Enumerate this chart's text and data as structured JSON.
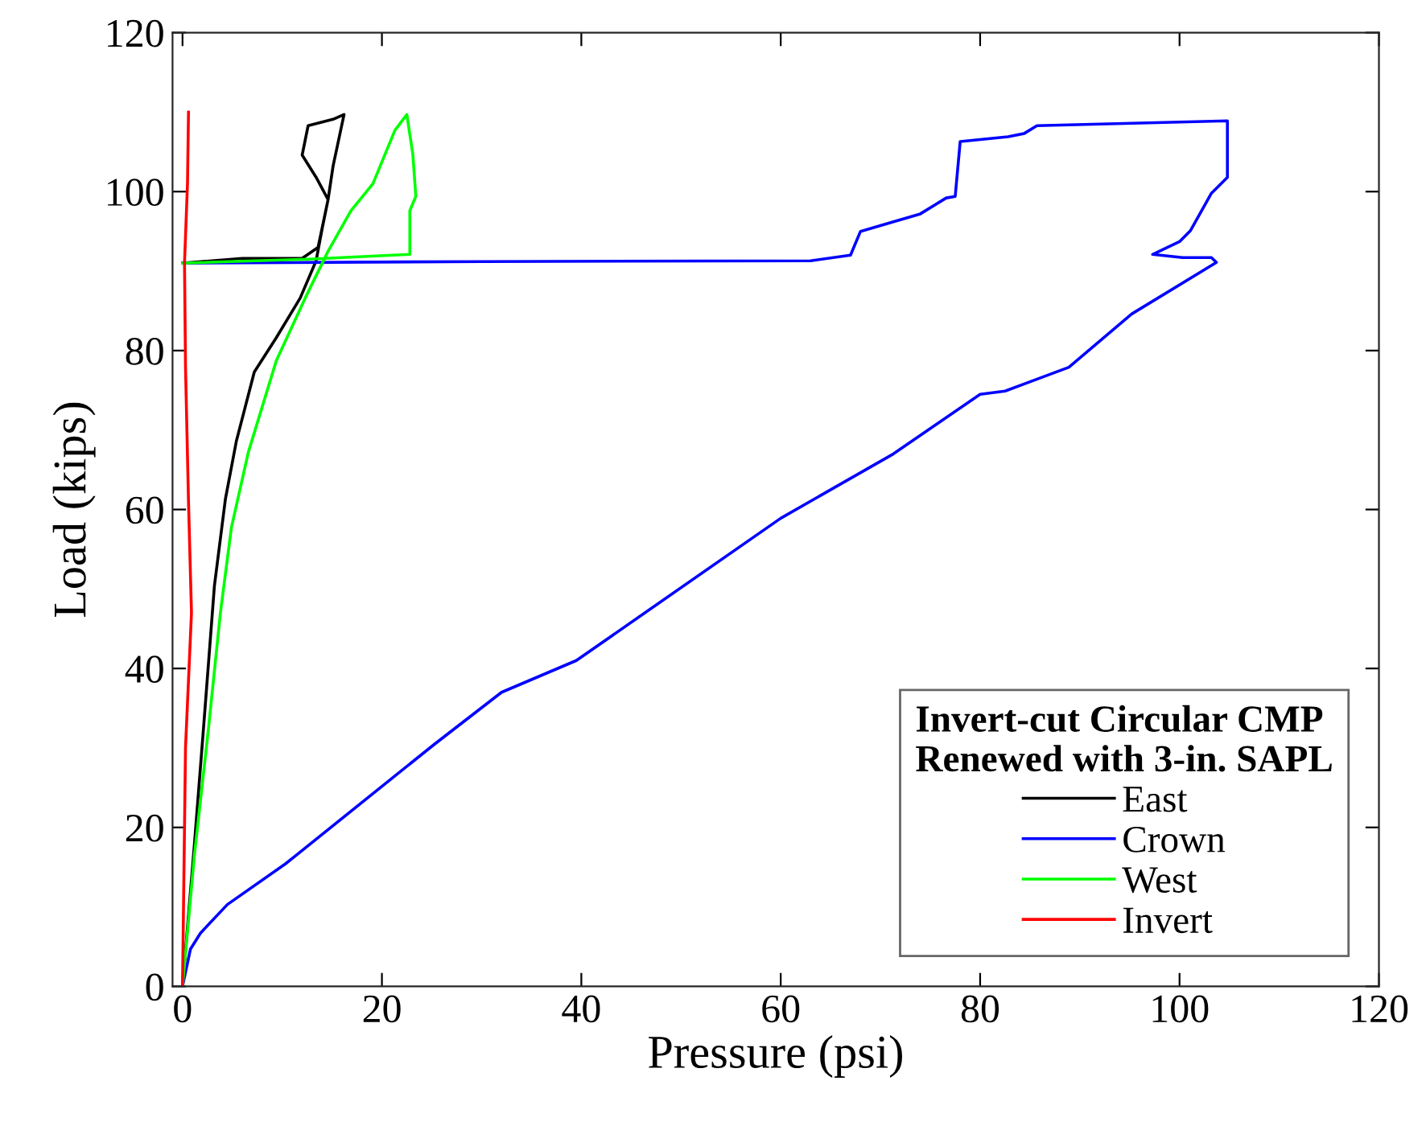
{
  "chart_data": {
    "type": "line",
    "xlabel": "Pressure (psi)",
    "ylabel": "Load (kips)",
    "legend_title": "Invert-cut Circular CMP\nRenewed with 3-in. SAPL",
    "legend": "bottom right",
    "grid": false,
    "xlim": [
      -1,
      120
    ],
    "ylim": [
      0,
      120
    ],
    "xticks": [
      0,
      20,
      40,
      60,
      80,
      100,
      120
    ],
    "yticks": [
      0,
      20,
      40,
      60,
      80,
      100,
      120
    ],
    "series": [
      {
        "name": "East",
        "color": "#000000",
        "x": [
          0,
          1.2,
          2.1,
          3.2,
          4.3,
          5.4,
          7.2,
          9.4,
          11.8,
          13.4,
          14,
          14.6,
          13.4,
          12,
          12.6,
          15.1,
          16.2,
          15.1,
          14.6,
          13.6,
          12,
          6,
          0
        ],
        "values": [
          0,
          18,
          32.4,
          50.4,
          61.3,
          68.6,
          77.3,
          81.6,
          86.6,
          91.3,
          95.3,
          99,
          101.8,
          104.6,
          108.3,
          109.1,
          109.7,
          103.2,
          99,
          93,
          91.6,
          91.6,
          91
        ]
      },
      {
        "name": "Crown",
        "color": "#0000ff",
        "x": [
          0,
          0.8,
          1.8,
          4.5,
          10.3,
          11.3,
          25.2,
          32,
          39.5,
          60,
          71.3,
          80,
          82.5,
          88.9,
          95.2,
          103.7,
          103.2,
          100.3,
          97.3,
          100,
          101.1,
          103.2,
          104.8,
          104.8,
          104.8,
          85.7,
          84.4,
          82.8,
          78,
          77.5,
          76.6,
          74,
          71.3,
          68,
          67,
          63,
          30,
          0
        ],
        "values": [
          0,
          4.7,
          6.7,
          10.3,
          15.4,
          16.4,
          30.4,
          37,
          41,
          58.9,
          67,
          74.5,
          74.9,
          77.9,
          84.6,
          91.1,
          91.7,
          91.7,
          92.1,
          93.7,
          95.1,
          99.8,
          101.8,
          105.3,
          108.9,
          108.3,
          107.3,
          106.9,
          106.3,
          99.4,
          99.2,
          97.2,
          96.2,
          95,
          92,
          91.3,
          91.2,
          91
        ]
      },
      {
        "name": "West",
        "color": "#00ff00",
        "x": [
          0,
          1.2,
          2.6,
          3.8,
          4.9,
          6.6,
          9.4,
          12.3,
          14.6,
          16.9,
          19.1,
          21.3,
          22.5,
          23.1,
          23.4,
          22.8,
          22.8,
          12.6,
          0
        ],
        "values": [
          0,
          16.6,
          32.4,
          47,
          57.7,
          67.2,
          78.7,
          86.6,
          92.5,
          97.6,
          101,
          107.7,
          109.7,
          104.7,
          99.4,
          97.6,
          92.1,
          91.5,
          91
        ]
      },
      {
        "name": "Invert",
        "color": "#ff0000",
        "x": [
          0,
          0.3,
          0.9,
          0.6,
          0.3,
          0.2,
          0.5,
          0.6
        ],
        "values": [
          0,
          30,
          47,
          61,
          78,
          91,
          101,
          110
        ]
      }
    ]
  }
}
